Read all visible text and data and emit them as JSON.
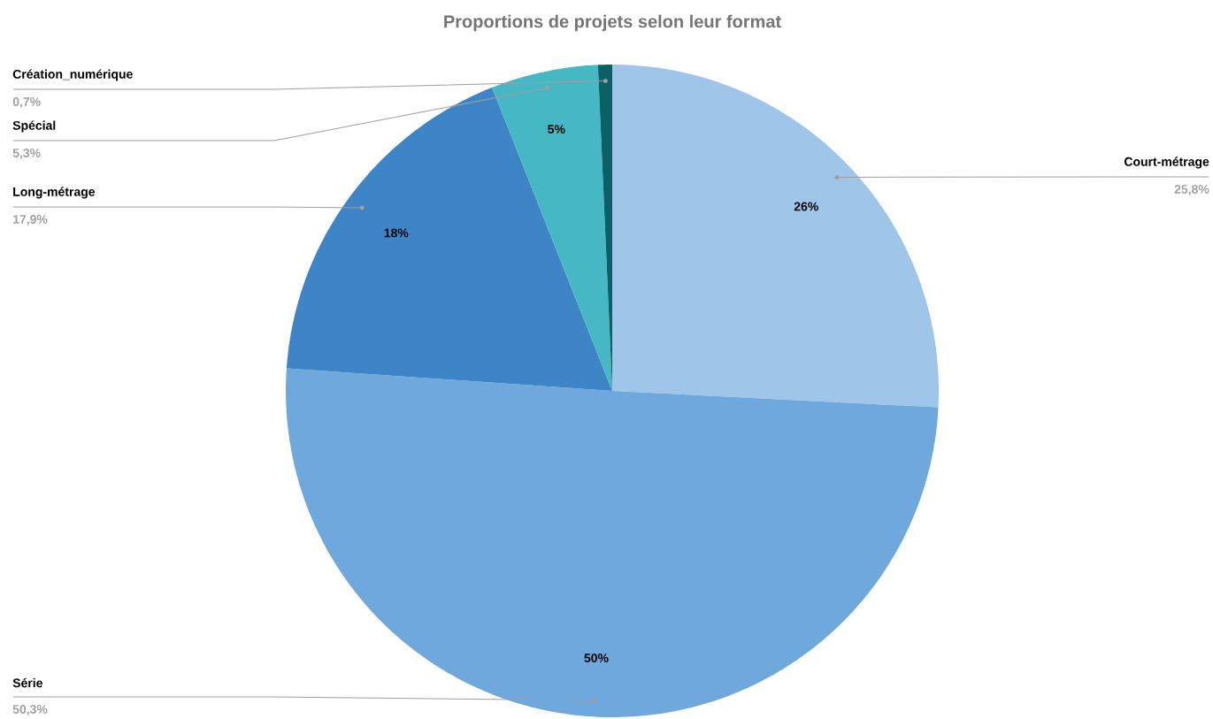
{
  "chart_data": {
    "type": "pie",
    "title": "Proportions de projets selon leur format",
    "categories": [
      "Court-métrage",
      "Série",
      "Long-métrage",
      "Spécial",
      "Création_numérique"
    ],
    "values": [
      25.8,
      50.3,
      17.9,
      5.3,
      0.7
    ],
    "colors": [
      "#9fc5e8",
      "#6fa8dc",
      "#3d85c6",
      "#45b8c4",
      "#0b6066"
    ],
    "value_labels": [
      "25,8%",
      "50,3%",
      "17,9%",
      "5,3%",
      "0,7%"
    ],
    "annotations": [
      "26%",
      "50%",
      "18%",
      "5%"
    ]
  }
}
